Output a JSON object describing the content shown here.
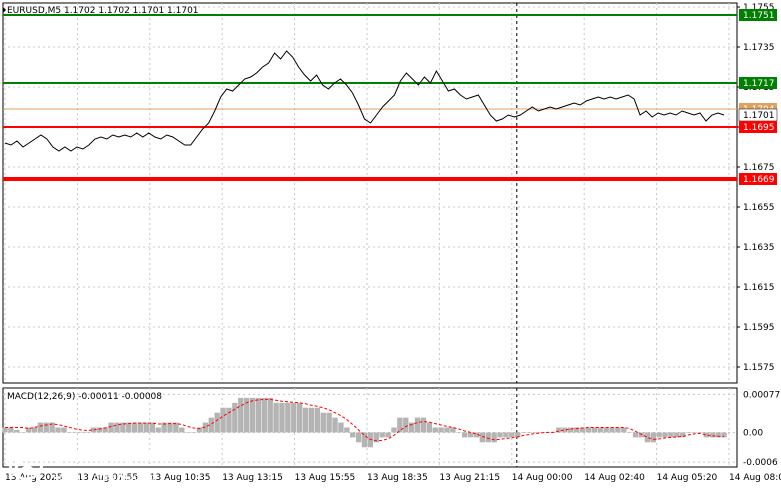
{
  "chart_data": [
    {
      "type": "line",
      "header": "EURUSD,M5  1.1702 1.1702 1.1701 1.1701",
      "ylim": [
        1.1567,
        1.1757
      ],
      "y_ticks": [
        "1.1755",
        "1.1735",
        "1.1715",
        "1.1695",
        "1.1675",
        "1.1655",
        "1.1635",
        "1.1615",
        "1.1595",
        "1.1575"
      ],
      "y_tick_values": [
        1.1755,
        1.1735,
        1.1715,
        1.1695,
        1.1675,
        1.1655,
        1.1635,
        1.1615,
        1.1595,
        1.1575
      ],
      "x_ticks": [
        "13 Aug 2025",
        "13 Aug 07:55",
        "13 Aug 10:35",
        "13 Aug 13:15",
        "13 Aug 15:55",
        "13 Aug 18:35",
        "13 Aug 21:15",
        "14 Aug 00:00",
        "14 Aug 02:40",
        "14 Aug 05:20",
        "14 Aug 08:00"
      ],
      "price": [
        1.1687,
        1.1686,
        1.1688,
        1.1685,
        1.1687,
        1.1689,
        1.1691,
        1.1689,
        1.1685,
        1.1683,
        1.1685,
        1.1683,
        1.1685,
        1.1684,
        1.1686,
        1.1689,
        1.169,
        1.1689,
        1.1691,
        1.169,
        1.1691,
        1.169,
        1.1692,
        1.169,
        1.1692,
        1.169,
        1.1689,
        1.1691,
        1.169,
        1.1688,
        1.1686,
        1.1686,
        1.169,
        1.1694,
        1.1697,
        1.1703,
        1.171,
        1.1714,
        1.1713,
        1.1716,
        1.1719,
        1.172,
        1.1722,
        1.1725,
        1.1727,
        1.1732,
        1.1729,
        1.1733,
        1.173,
        1.1725,
        1.1721,
        1.1718,
        1.1721,
        1.1716,
        1.1714,
        1.1717,
        1.1719,
        1.1716,
        1.1712,
        1.1706,
        1.1699,
        1.1697,
        1.1701,
        1.1705,
        1.1708,
        1.1711,
        1.1718,
        1.1722,
        1.1719,
        1.1716,
        1.172,
        1.1717,
        1.1723,
        1.1718,
        1.1713,
        1.1714,
        1.1711,
        1.1709,
        1.171,
        1.1711,
        1.1706,
        1.1701,
        1.1698,
        1.1699,
        1.1701,
        1.17,
        1.1701,
        1.1703,
        1.1705,
        1.1703,
        1.1704,
        1.1705,
        1.1704,
        1.1705,
        1.1706,
        1.1707,
        1.1706,
        1.1708,
        1.1709,
        1.171,
        1.1709,
        1.171,
        1.1709,
        1.171,
        1.1711,
        1.1709,
        1.1701,
        1.1703,
        1.17,
        1.1702,
        1.1701,
        1.1702,
        1.1701,
        1.1703,
        1.1702,
        1.1701,
        1.1702,
        1.1698,
        1.1701,
        1.1702,
        1.1701
      ],
      "levels": [
        {
          "label": "1.1751",
          "value": 1.1751,
          "color": "#008000"
        },
        {
          "label": "1.1717",
          "value": 1.1717,
          "color": "#008000"
        },
        {
          "label": "1.1704",
          "value": 1.1704,
          "color": "#e0a060"
        },
        {
          "label": "1.1701",
          "value": 1.1701,
          "color": "#000000"
        },
        {
          "label": "1.1695",
          "value": 1.1695,
          "color": "#ff0000"
        },
        {
          "label": "1.1669",
          "value": 1.1669,
          "color": "#ff0000"
        }
      ]
    },
    {
      "type": "bar",
      "header": "MACD(12,26,9) -0.00011 -0.00008",
      "ylim": [
        -0.0007,
        0.0009
      ],
      "y_ticks": [
        "0.00077",
        "0.00",
        "-0.0006"
      ],
      "y_tick_values": [
        0.00077,
        0.0,
        -0.0006
      ],
      "histogram": [
        0.0001,
        0.0001,
        5e-05,
        0.0,
        0.0001,
        0.0001,
        0.0002,
        0.0002,
        0.0002,
        0.0001,
        0.0001,
        0.0,
        0.0,
        0.0,
        0.0,
        0.0001,
        0.0001,
        0.0001,
        0.0002,
        0.0002,
        0.0002,
        0.0002,
        0.0002,
        0.0002,
        0.0002,
        0.0002,
        0.0001,
        0.0002,
        0.0002,
        0.0002,
        0.0001,
        0.0,
        0.0,
        0.0001,
        0.0002,
        0.0003,
        0.0004,
        0.0005,
        0.0005,
        0.0006,
        0.0007,
        0.0007,
        0.0007,
        0.0007,
        0.0007,
        0.0007,
        0.0006,
        0.0006,
        0.0006,
        0.0006,
        0.0006,
        0.0005,
        0.0005,
        0.0005,
        0.0004,
        0.0004,
        0.0003,
        0.0002,
        0.0001,
        -0.0001,
        -0.0002,
        -0.0003,
        -0.0003,
        -0.0002,
        -0.0001,
        -0.0001,
        0.0001,
        0.0003,
        0.0003,
        0.0002,
        0.0003,
        0.0003,
        0.0002,
        0.0001,
        0.0001,
        0.0001,
        0.0001,
        0.0,
        -0.0001,
        -0.0001,
        -0.0001,
        -0.0002,
        -0.0002,
        -0.0002,
        -0.0001,
        -0.0001,
        -0.0001,
        -0.0001,
        0.0,
        0.0,
        0.0,
        0.0,
        0.0,
        0.0,
        0.0001,
        0.0001,
        0.0001,
        0.0001,
        0.0001,
        0.0001,
        0.0001,
        0.0001,
        0.0001,
        0.0001,
        0.0001,
        0.0001,
        0.0,
        -0.0001,
        -0.0001,
        -0.0002,
        -0.0002,
        -0.0001,
        -0.0001,
        -0.0001,
        -0.0001,
        -0.0001,
        0.0,
        0.0,
        0.0,
        -0.0001,
        -0.0001,
        -0.0001,
        -0.0001
      ],
      "signal": [
        0.0001,
        0.0001,
        0.0001,
        0.0001,
        8e-05,
        0.0001,
        0.00013,
        0.00015,
        0.00017,
        0.00016,
        0.00013,
        0.0001,
        7e-05,
        5e-05,
        4e-05,
        5e-05,
        7e-05,
        9e-05,
        0.00012,
        0.00015,
        0.00017,
        0.00018,
        0.00019,
        0.00019,
        0.00019,
        0.00019,
        0.00017,
        0.00017,
        0.00018,
        0.00018,
        0.00016,
        0.00012,
        9e-05,
        8e-05,
        0.00011,
        0.00017,
        0.00025,
        0.00033,
        0.0004,
        0.00047,
        0.00054,
        0.0006,
        0.00064,
        0.00066,
        0.00067,
        0.00067,
        0.00065,
        0.00063,
        0.00062,
        0.00061,
        0.0006,
        0.00058,
        0.00055,
        0.00053,
        0.0005,
        0.00046,
        0.0004,
        0.00034,
        0.00026,
        0.00016,
        5e-05,
        -6e-05,
        -0.00014,
        -0.00017,
        -0.00016,
        -0.00013,
        -6e-05,
        4e-05,
        0.00012,
        0.00016,
        0.0002,
        0.00022,
        0.00021,
        0.00018,
        0.00015,
        0.00012,
        0.0001,
        7e-05,
        3e-05,
        0.0,
        -3e-05,
        -8e-05,
        -0.00012,
        -0.00015,
        -0.00014,
        -0.00012,
        -0.00011,
        -9e-05,
        -6e-05,
        -4e-05,
        -2e-05,
        -1e-05,
        0.0,
        0.0,
        3e-05,
        5e-05,
        7e-05,
        8e-05,
        9e-05,
        0.0001,
        0.0001,
        0.0001,
        0.0001,
        0.0001,
        0.0001,
        0.0001,
        8e-05,
        2e-05,
        -4e-05,
        -0.0001,
        -0.00014,
        -0.00013,
        -0.00011,
        -0.0001,
        -9e-05,
        -8e-05,
        -5e-05,
        -3e-05,
        -2e-05,
        -5e-05,
        -7e-05,
        -8e-05,
        -8e-05
      ]
    }
  ],
  "watermark": {
    "brand": "instaforex",
    "tagline": "Instant Forex Trading"
  }
}
